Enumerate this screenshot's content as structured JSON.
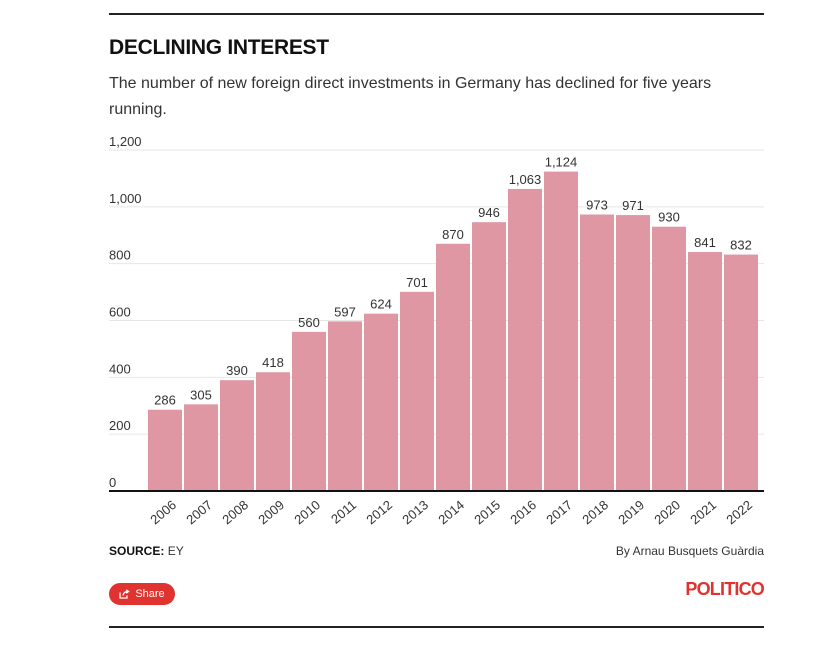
{
  "header": {
    "title": "DECLINING INTEREST",
    "subtitle": "The number of new foreign direct investments in Germany has declined for five years running."
  },
  "chart_data": {
    "type": "bar",
    "categories": [
      "2006",
      "2007",
      "2008",
      "2009",
      "2010",
      "2011",
      "2012",
      "2013",
      "2014",
      "2015",
      "2016",
      "2017",
      "2018",
      "2019",
      "2020",
      "2021",
      "2022"
    ],
    "values": [
      286,
      305,
      390,
      418,
      560,
      597,
      624,
      701,
      870,
      946,
      1063,
      1124,
      973,
      971,
      930,
      841,
      832
    ],
    "value_labels": [
      "286",
      "305",
      "390",
      "418",
      "560",
      "597",
      "624",
      "701",
      "870",
      "946",
      "1,063",
      "1,124",
      "973",
      "971",
      "930",
      "841",
      "832"
    ],
    "y_ticks": [
      0,
      200,
      400,
      600,
      800,
      1000,
      1200
    ],
    "y_tick_labels": [
      "0",
      "200",
      "400",
      "600",
      "800",
      "1,000",
      "1,200"
    ],
    "ylim": [
      0,
      1200
    ],
    "grid": true,
    "bar_color": "#df97a4",
    "xlabel": "",
    "ylabel": ""
  },
  "footer": {
    "source_label": "SOURCE:",
    "source_value": "EY",
    "byline": "By Arnau Busquets Guàrdia",
    "share_label": "Share",
    "logo": "POLITICO"
  },
  "colors": {
    "accent": "#e0332f",
    "bar": "#df97a4",
    "grid": "#e6e6e6",
    "axis": "#111111"
  }
}
